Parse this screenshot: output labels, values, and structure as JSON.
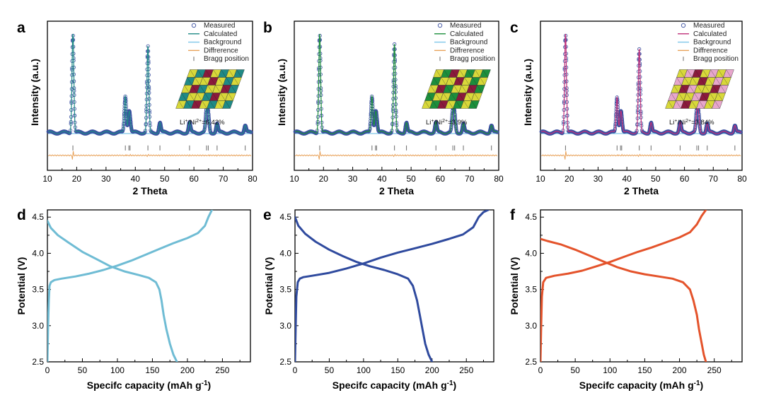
{
  "chart_data": [
    {
      "panel": "a",
      "type": "line",
      "xlabel": "2 Theta",
      "ylabel": "Intensity (a.u.)",
      "xlim": [
        10,
        80
      ],
      "xticks": [
        10,
        20,
        30,
        40,
        50,
        60,
        70,
        80
      ],
      "ylim": [
        -0.35,
        1.15
      ],
      "color": "#1f8a86",
      "legend": [
        "Measured",
        "Calculated",
        "Background",
        "Diffrerence",
        "Bragg position"
      ],
      "legend_colors": {
        "measured": "#3a4fa0",
        "calculated": "#1f8a86",
        "background": "#7ec6e8",
        "difference": "#e8a25a",
        "bragg": "#777777"
      },
      "annotation": {
        "prefix": "Li",
        "sup1": "+",
        "mid": "/Ni",
        "sup2": "2+",
        "suffix": "=6.42%"
      },
      "crystal_colors": [
        "#d8d83a",
        "#1f8a86",
        "#8b1a3c"
      ],
      "peaks": [
        [
          18.7,
          1.0
        ],
        [
          36.6,
          0.37
        ],
        [
          37.8,
          0.17
        ],
        [
          38.2,
          0.1
        ],
        [
          44.3,
          0.86
        ],
        [
          48.4,
          0.1
        ],
        [
          58.5,
          0.1
        ],
        [
          64.3,
          0.21
        ],
        [
          64.9,
          0.17
        ],
        [
          67.9,
          0.09
        ],
        [
          77.5,
          0.07
        ]
      ],
      "bragg_positions": [
        18.7,
        36.6,
        37.8,
        38.2,
        44.3,
        48.4,
        58.5,
        64.3,
        64.9,
        67.9,
        77.5
      ]
    },
    {
      "panel": "b",
      "type": "line",
      "xlabel": "2 Theta",
      "ylabel": "Intensity (a.u.)",
      "xlim": [
        10,
        80
      ],
      "xticks": [
        10,
        20,
        30,
        40,
        50,
        60,
        70,
        80
      ],
      "ylim": [
        -0.35,
        1.15
      ],
      "color": "#1c8f3c",
      "legend": [
        "Measured",
        "Calculated",
        "Background",
        "Diffrerence",
        "Bragg position"
      ],
      "legend_colors": {
        "measured": "#3a4fa0",
        "calculated": "#1c8f3c",
        "background": "#7ec6e8",
        "difference": "#e8a25a",
        "bragg": "#777777"
      },
      "annotation": {
        "prefix": "Li",
        "sup1": "+",
        "mid": "/Ni",
        "sup2": "2+",
        "suffix": "=3.9%"
      },
      "crystal_colors": [
        "#d8d83a",
        "#1c8f3c",
        "#8b1a3c"
      ],
      "peaks": [
        [
          18.7,
          1.0
        ],
        [
          36.6,
          0.37
        ],
        [
          37.8,
          0.17
        ],
        [
          38.2,
          0.1
        ],
        [
          44.3,
          0.88
        ],
        [
          48.4,
          0.1
        ],
        [
          58.5,
          0.1
        ],
        [
          64.3,
          0.2
        ],
        [
          64.9,
          0.17
        ],
        [
          67.9,
          0.09
        ],
        [
          77.5,
          0.07
        ]
      ],
      "bragg_positions": [
        18.7,
        36.6,
        37.8,
        38.2,
        44.3,
        48.4,
        58.5,
        64.3,
        64.9,
        67.9,
        77.5
      ]
    },
    {
      "panel": "c",
      "type": "line",
      "xlabel": "2 Theta",
      "ylabel": "Intensity (a.u.)",
      "xlim": [
        10,
        80
      ],
      "xticks": [
        10,
        20,
        30,
        40,
        50,
        60,
        70,
        80
      ],
      "ylim": [
        -0.35,
        1.15
      ],
      "color": "#c0307a",
      "legend": [
        "Measured",
        "Calculated",
        "Background",
        "Diffrerence",
        "Bragg position"
      ],
      "legend_colors": {
        "measured": "#3a4fa0",
        "calculated": "#c0307a",
        "background": "#7ec6e8",
        "difference": "#e8a25a",
        "bragg": "#777777"
      },
      "annotation": {
        "prefix": "Li",
        "sup1": "+",
        "mid": "/Ni",
        "sup2": "2+",
        "suffix": "=3.84%"
      },
      "crystal_colors": [
        "#d8d83a",
        "#e7a6cc",
        "#8b1a3c"
      ],
      "peaks": [
        [
          18.7,
          1.0
        ],
        [
          36.6,
          0.36
        ],
        [
          37.8,
          0.17
        ],
        [
          38.2,
          0.1
        ],
        [
          44.3,
          0.83
        ],
        [
          48.4,
          0.1
        ],
        [
          58.5,
          0.1
        ],
        [
          64.3,
          0.2
        ],
        [
          64.9,
          0.17
        ],
        [
          67.9,
          0.09
        ],
        [
          77.5,
          0.07
        ]
      ],
      "bragg_positions": [
        18.7,
        36.6,
        37.8,
        38.2,
        44.3,
        48.4,
        58.5,
        64.3,
        64.9,
        67.9,
        77.5
      ]
    },
    {
      "panel": "d",
      "type": "line",
      "xlabel": "Specifc capacity (mAh g",
      "xlabel_sup": "-1",
      "xlabel_end": ")",
      "ylabel": "Potential (V)",
      "xlim": [
        0,
        290
      ],
      "ylim": [
        2.5,
        4.6
      ],
      "xticks": [
        0,
        50,
        100,
        150,
        200,
        250
      ],
      "yticks": [
        2.5,
        3.0,
        3.5,
        4.0,
        4.5
      ],
      "xticklabels": [
        "0",
        "50",
        "100",
        "150",
        "200",
        "250"
      ],
      "yticklabels": [
        "2.5",
        "3.0",
        "3.5",
        "4.0",
        "4.5"
      ],
      "color": "#6fbcd4",
      "series": [
        {
          "name": "charge",
          "x": [
            0,
            1,
            2,
            3,
            5,
            10,
            20,
            40,
            60,
            80,
            100,
            120,
            140,
            160,
            180,
            200,
            215,
            225,
            230,
            235
          ],
          "y": [
            2.5,
            3.0,
            3.35,
            3.55,
            3.6,
            3.63,
            3.65,
            3.68,
            3.72,
            3.77,
            3.83,
            3.9,
            3.98,
            4.06,
            4.14,
            4.21,
            4.28,
            4.38,
            4.5,
            4.6
          ]
        },
        {
          "name": "discharge",
          "x": [
            0,
            5,
            15,
            30,
            50,
            70,
            90,
            110,
            130,
            145,
            155,
            160,
            163,
            166,
            170,
            175,
            180,
            185
          ],
          "y": [
            4.45,
            4.35,
            4.25,
            4.15,
            4.02,
            3.92,
            3.82,
            3.75,
            3.7,
            3.66,
            3.6,
            3.5,
            3.35,
            3.15,
            2.95,
            2.75,
            2.6,
            2.5
          ]
        }
      ]
    },
    {
      "panel": "e",
      "type": "line",
      "xlabel": "Specifc capacity (mAh g",
      "xlabel_sup": "-1",
      "xlabel_end": ")",
      "ylabel": "Potential (V)",
      "xlim": [
        0,
        290
      ],
      "ylim": [
        2.5,
        4.6
      ],
      "xticks": [
        0,
        50,
        100,
        150,
        200,
        250
      ],
      "yticks": [
        2.5,
        3.0,
        3.5,
        4.0,
        4.5
      ],
      "xticklabels": [
        "0",
        "50",
        "100",
        "150",
        "200",
        "250"
      ],
      "yticklabels": [
        "2.5",
        "3.0",
        "3.5",
        "4.0",
        "4.5"
      ],
      "color": "#2f4a9e",
      "series": [
        {
          "name": "charge",
          "x": [
            0,
            1,
            2,
            4,
            7,
            12,
            25,
            50,
            75,
            100,
            125,
            150,
            175,
            200,
            225,
            245,
            260,
            268,
            275,
            282
          ],
          "y": [
            2.5,
            3.0,
            3.4,
            3.6,
            3.65,
            3.67,
            3.69,
            3.73,
            3.79,
            3.86,
            3.94,
            4.01,
            4.07,
            4.13,
            4.2,
            4.26,
            4.36,
            4.5,
            4.57,
            4.6
          ]
        },
        {
          "name": "discharge",
          "x": [
            0,
            5,
            15,
            30,
            50,
            70,
            90,
            110,
            130,
            150,
            165,
            172,
            178,
            182,
            186,
            190,
            195,
            200
          ],
          "y": [
            4.5,
            4.38,
            4.27,
            4.16,
            4.05,
            3.96,
            3.88,
            3.82,
            3.77,
            3.71,
            3.65,
            3.55,
            3.35,
            3.15,
            2.95,
            2.75,
            2.6,
            2.5
          ]
        }
      ]
    },
    {
      "panel": "f",
      "type": "line",
      "xlabel": "Specifc capacity (mAh g",
      "xlabel_sup": "-1",
      "xlabel_end": ")",
      "ylabel": "Potential (V)",
      "xlim": [
        0,
        290
      ],
      "ylim": [
        2.5,
        4.6
      ],
      "xticks": [
        0,
        50,
        100,
        150,
        200,
        250
      ],
      "yticks": [
        2.5,
        3.0,
        3.5,
        4.0,
        4.5
      ],
      "xticklabels": [
        "0",
        "50",
        "100",
        "150",
        "200",
        "250"
      ],
      "yticklabels": [
        "2.5",
        "3.0",
        "3.5",
        "4.0",
        "4.5"
      ],
      "color": "#e4532b",
      "series": [
        {
          "name": "charge",
          "x": [
            0,
            1,
            2,
            4,
            8,
            20,
            40,
            60,
            80,
            100,
            120,
            140,
            160,
            180,
            200,
            215,
            225,
            232,
            238
          ],
          "y": [
            2.5,
            3.0,
            3.4,
            3.6,
            3.66,
            3.69,
            3.72,
            3.76,
            3.82,
            3.88,
            3.95,
            4.02,
            4.08,
            4.15,
            4.22,
            4.29,
            4.4,
            4.52,
            4.6
          ]
        },
        {
          "name": "discharge",
          "x": [
            0,
            10,
            30,
            50,
            70,
            90,
            110,
            130,
            150,
            170,
            190,
            205,
            215,
            220,
            225,
            228,
            232,
            235,
            238
          ],
          "y": [
            4.2,
            4.17,
            4.12,
            4.05,
            3.97,
            3.89,
            3.81,
            3.75,
            3.71,
            3.68,
            3.65,
            3.6,
            3.5,
            3.35,
            3.15,
            2.95,
            2.75,
            2.6,
            2.5
          ]
        }
      ]
    }
  ]
}
